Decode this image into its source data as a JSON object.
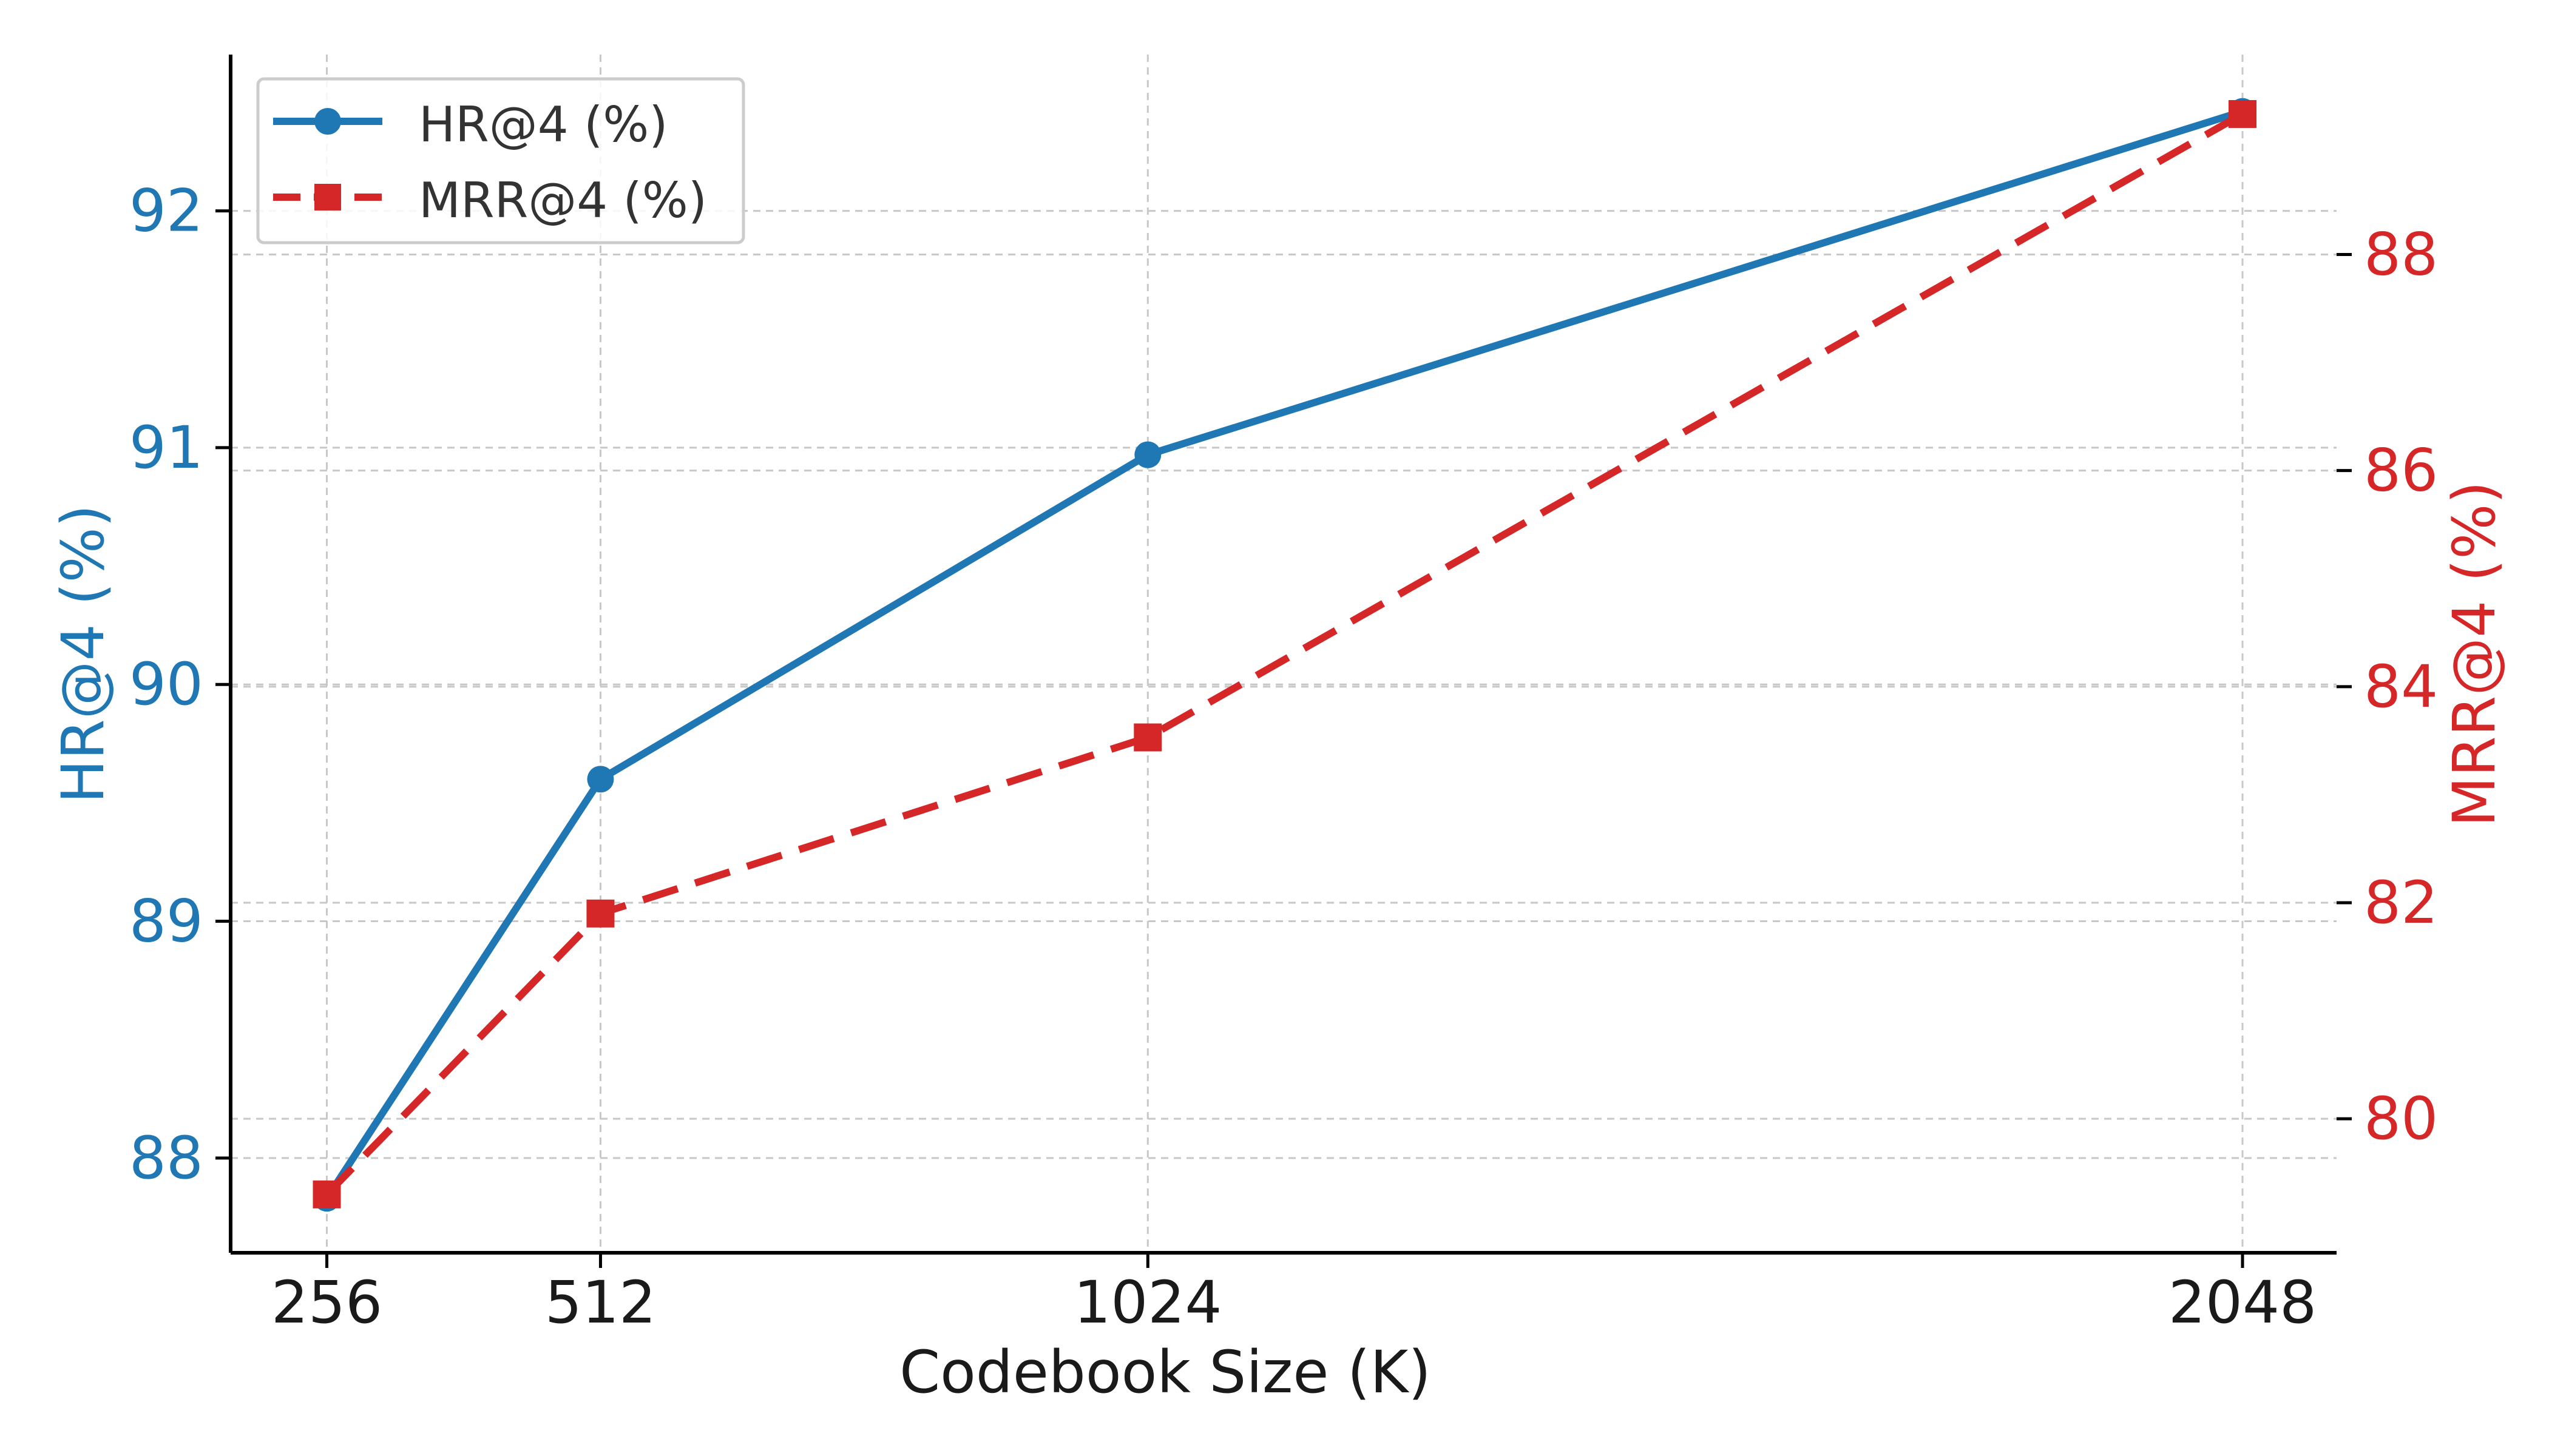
{
  "chart_data": {
    "type": "line",
    "title": "",
    "xlabel": "Codebook Size (K)",
    "ylabel": "HR@4 (%)",
    "ylabel_right": "MRR@4 (%)",
    "x": [
      256,
      512,
      1024,
      2048
    ],
    "x_tick_labels": [
      "256",
      "512",
      "1024",
      "2048"
    ],
    "xlim": [
      166,
      2136
    ],
    "ylim_left": [
      87.6,
      92.66
    ],
    "ylim_right": [
      78.76,
      89.85
    ],
    "y_ticks_left": [
      "88",
      "89",
      "90",
      "91",
      "92"
    ],
    "y_ticks_right": [
      "80",
      "82",
      "84",
      "86",
      "88"
    ],
    "grid": true,
    "legend_position": "top-left",
    "series": [
      {
        "name": "HR@4 (%)",
        "axis": "left",
        "color": "#1f77b4",
        "line_style": "solid",
        "marker": "circle",
        "values": [
          87.83,
          89.6,
          90.97,
          92.42
        ]
      },
      {
        "name": "MRR@4 (%)",
        "axis": "right",
        "color": "#d62728",
        "line_style": "dashed",
        "marker": "square",
        "values": [
          79.3,
          81.9,
          83.53,
          89.3
        ]
      }
    ]
  }
}
